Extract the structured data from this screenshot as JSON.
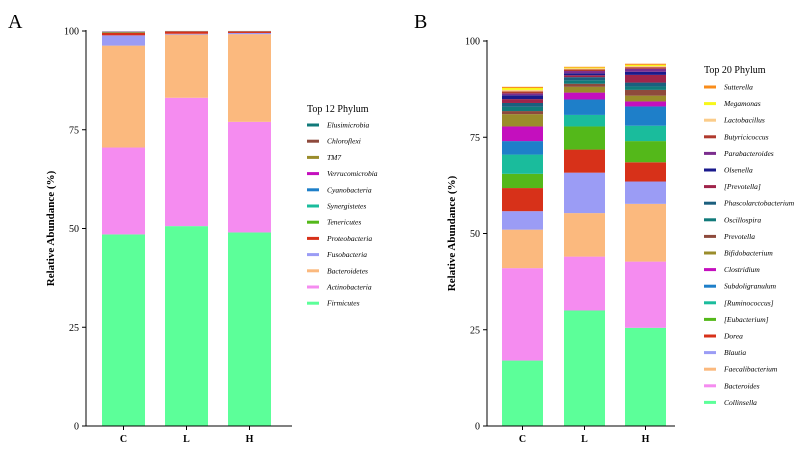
{
  "chart_data": [
    {
      "type": "bar",
      "stacked": true,
      "panel_label": "A",
      "categories": [
        "C",
        "L",
        "H"
      ],
      "ylabel": "Relative Abundance (%)",
      "ylim": [
        0,
        100
      ],
      "yticks": [
        "0",
        "25",
        "50",
        "75",
        "100"
      ],
      "legend_title": "Top 12 Phylum",
      "legend_position": "right",
      "series": [
        {
          "name": "Firmicutes",
          "color": "#5cff99",
          "values": [
            48.5,
            50.6,
            49.0
          ]
        },
        {
          "name": "Actinobacteria",
          "color": "#f58cf0",
          "values": [
            22.0,
            32.5,
            28.0
          ]
        },
        {
          "name": "Bacteroidetes",
          "color": "#fbb97e",
          "values": [
            25.8,
            16.0,
            22.2
          ]
        },
        {
          "name": "Fusobacteria",
          "color": "#9b9cf5",
          "values": [
            2.6,
            0.2,
            0.3
          ]
        },
        {
          "name": "Proteobacteria",
          "color": "#d73119",
          "values": [
            0.7,
            0.6,
            0.4
          ]
        },
        {
          "name": "Tenericutes",
          "color": "#54b81a",
          "values": [
            0.1,
            0.03,
            0.03
          ]
        },
        {
          "name": "Synergistetes",
          "color": "#1abc9c",
          "values": [
            0.05,
            0.02,
            0.02
          ]
        },
        {
          "name": "Cyanobacteria",
          "color": "#1e7fc9",
          "values": [
            0.05,
            0.02,
            0.02
          ]
        },
        {
          "name": "Verrucomicrobia",
          "color": "#c40fbe",
          "values": [
            0.05,
            0.01,
            0.01
          ]
        },
        {
          "name": "TM7",
          "color": "#9a8c2b",
          "values": [
            0.03,
            0.01,
            0.01
          ]
        },
        {
          "name": "Chloroflexi",
          "color": "#8e4a3c",
          "values": [
            0.02,
            0.01,
            0.01
          ]
        },
        {
          "name": "Elusimicrobia",
          "color": "#117a7a",
          "values": [
            0.02,
            0.01,
            0.01
          ]
        }
      ]
    },
    {
      "type": "bar",
      "stacked": true,
      "panel_label": "B",
      "categories": [
        "C",
        "L",
        "H"
      ],
      "ylabel": "Relative Abundance (%)",
      "ylim": [
        0,
        100
      ],
      "yticks": [
        "0",
        "25",
        "50",
        "75",
        "100"
      ],
      "legend_title": "Top 20 Phylum",
      "legend_position": "right",
      "series": [
        {
          "name": "Collinsella",
          "color": "#5cff99",
          "values": [
            17.0,
            30.0,
            25.5
          ]
        },
        {
          "name": "Bacteroides",
          "color": "#f58cf0",
          "values": [
            24.0,
            14.0,
            17.2
          ]
        },
        {
          "name": "Faecalibacterium",
          "color": "#fbb97e",
          "values": [
            10.0,
            11.3,
            15.0
          ]
        },
        {
          "name": "Blautia",
          "color": "#9b9cf5",
          "values": [
            4.8,
            10.5,
            5.8
          ]
        },
        {
          "name": "Dorea",
          "color": "#d73119",
          "values": [
            6.0,
            6.0,
            5.0
          ]
        },
        {
          "name": "[Eubacterium]",
          "color": "#54b81a",
          "values": [
            3.7,
            6.0,
            5.5
          ]
        },
        {
          "name": "[Ruminococcus]",
          "color": "#1abc9c",
          "values": [
            5.0,
            3.0,
            4.0
          ]
        },
        {
          "name": "Subdoligranulum",
          "color": "#1e7fc9",
          "values": [
            3.5,
            4.0,
            5.0
          ]
        },
        {
          "name": "Clostridium",
          "color": "#c40fbe",
          "values": [
            3.8,
            1.8,
            1.3
          ]
        },
        {
          "name": "Bifidobacterium",
          "color": "#9a8c2b",
          "values": [
            3.2,
            1.5,
            1.5
          ]
        },
        {
          "name": "Prevotella",
          "color": "#8e4a3c",
          "values": [
            0.8,
            0.8,
            1.5
          ]
        },
        {
          "name": "Oscillospira",
          "color": "#117a7a",
          "values": [
            1.1,
            0.9,
            0.9
          ]
        },
        {
          "name": "Phascolarctobacterium",
          "color": "#1b5f7e",
          "values": [
            1.0,
            0.8,
            1.0
          ]
        },
        {
          "name": "[Prevotella]",
          "color": "#a0244a",
          "values": [
            1.0,
            0.5,
            2.0
          ]
        },
        {
          "name": "Olsenella",
          "color": "#1a1a8c",
          "values": [
            1.0,
            0.5,
            0.8
          ]
        },
        {
          "name": "Parabacteroides",
          "color": "#7b2d8e",
          "values": [
            0.5,
            0.6,
            0.8
          ]
        },
        {
          "name": "Butyricicoccus",
          "color": "#b03a2e",
          "values": [
            0.5,
            0.4,
            0.4
          ]
        },
        {
          "name": "Lactobacillus",
          "color": "#fbcc8a",
          "values": [
            0.4,
            0.3,
            0.3
          ]
        },
        {
          "name": "Megamonas",
          "color": "#f7f71a",
          "values": [
            0.5,
            0.2,
            0.3
          ]
        },
        {
          "name": "Sutterella",
          "color": "#f98c1a",
          "values": [
            0.3,
            0.2,
            0.3
          ]
        }
      ]
    }
  ]
}
